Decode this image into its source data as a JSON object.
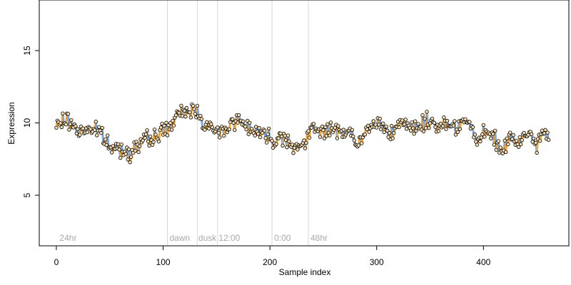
{
  "chart_data": {
    "type": "scatter",
    "title": "",
    "xlabel": "Sample index",
    "ylabel": "Expression",
    "xlim": [
      -16,
      480
    ],
    "ylim": [
      1.5,
      18.5
    ],
    "xticks": [
      0,
      100,
      200,
      300,
      400
    ],
    "yticks": [
      5,
      10,
      15
    ],
    "grid": false,
    "n_points": 462,
    "anchors": [
      [
        0,
        9.7
      ],
      [
        5,
        10.1
      ],
      [
        10,
        10.2
      ],
      [
        16,
        9.8
      ],
      [
        22,
        9.4
      ],
      [
        28,
        9.6
      ],
      [
        35,
        9.6
      ],
      [
        42,
        9.2
      ],
      [
        48,
        8.6
      ],
      [
        52,
        8.1
      ],
      [
        56,
        8.3
      ],
      [
        60,
        8.2
      ],
      [
        64,
        8.1
      ],
      [
        68,
        8.0
      ],
      [
        72,
        8.2
      ],
      [
        78,
        8.6
      ],
      [
        85,
        8.8
      ],
      [
        92,
        9.0
      ],
      [
        98,
        9.4
      ],
      [
        104,
        9.6
      ],
      [
        108,
        9.9
      ],
      [
        112,
        10.3
      ],
      [
        118,
        10.7
      ],
      [
        124,
        10.9
      ],
      [
        130,
        10.9
      ],
      [
        134,
        10.6
      ],
      [
        138,
        10.1
      ],
      [
        143,
        9.7
      ],
      [
        148,
        9.4
      ],
      [
        152,
        9.3
      ],
      [
        156,
        9.5
      ],
      [
        160,
        9.8
      ],
      [
        165,
        10.0
      ],
      [
        170,
        10.2
      ],
      [
        175,
        10.0
      ],
      [
        180,
        9.8
      ],
      [
        186,
        9.5
      ],
      [
        192,
        9.3
      ],
      [
        198,
        9.1
      ],
      [
        204,
        8.8
      ],
      [
        210,
        9.1
      ],
      [
        215,
        9.0
      ],
      [
        220,
        8.6
      ],
      [
        226,
        8.3
      ],
      [
        232,
        8.5
      ],
      [
        236,
        8.9
      ],
      [
        240,
        9.7
      ],
      [
        246,
        9.6
      ],
      [
        252,
        9.5
      ],
      [
        258,
        9.4
      ],
      [
        264,
        9.5
      ],
      [
        270,
        9.5
      ],
      [
        276,
        9.3
      ],
      [
        280,
        8.5
      ],
      [
        285,
        8.6
      ],
      [
        290,
        9.4
      ],
      [
        296,
        9.8
      ],
      [
        302,
        10.0
      ],
      [
        310,
        9.6
      ],
      [
        318,
        9.5
      ],
      [
        325,
        9.9
      ],
      [
        332,
        9.6
      ],
      [
        338,
        9.8
      ],
      [
        344,
        10.0
      ],
      [
        350,
        10.1
      ],
      [
        356,
        9.8
      ],
      [
        362,
        10.0
      ],
      [
        368,
        9.9
      ],
      [
        374,
        9.8
      ],
      [
        380,
        10.2
      ],
      [
        386,
        9.9
      ],
      [
        390,
        9.6
      ],
      [
        394,
        8.5
      ],
      [
        398,
        9.0
      ],
      [
        404,
        9.4
      ],
      [
        410,
        8.8
      ],
      [
        416,
        8.2
      ],
      [
        420,
        8.3
      ],
      [
        426,
        9.0
      ],
      [
        432,
        8.6
      ],
      [
        438,
        9.1
      ],
      [
        444,
        8.8
      ],
      [
        450,
        8.6
      ],
      [
        456,
        9.2
      ],
      [
        462,
        9.4
      ]
    ],
    "vlines": [
      104,
      132,
      151,
      202,
      236
    ],
    "annotations": [
      {
        "text": "24hr",
        "x": 3
      },
      {
        "text": "dawn",
        "x": 106
      },
      {
        "text": "dusk",
        "x": 133
      },
      {
        "text": "12:00",
        "x": 152
      },
      {
        "text": "0:00",
        "x": 204
      },
      {
        "text": "48hr",
        "x": 238
      }
    ],
    "colors": {
      "up": "#f2a53c",
      "down": "#7ea6d9",
      "flat": "#b4b4b4",
      "point_fill": "#f5deb3",
      "point_stroke": "#000000",
      "vline": "#d8d8d8",
      "annotation": "#a9a9a9"
    }
  }
}
